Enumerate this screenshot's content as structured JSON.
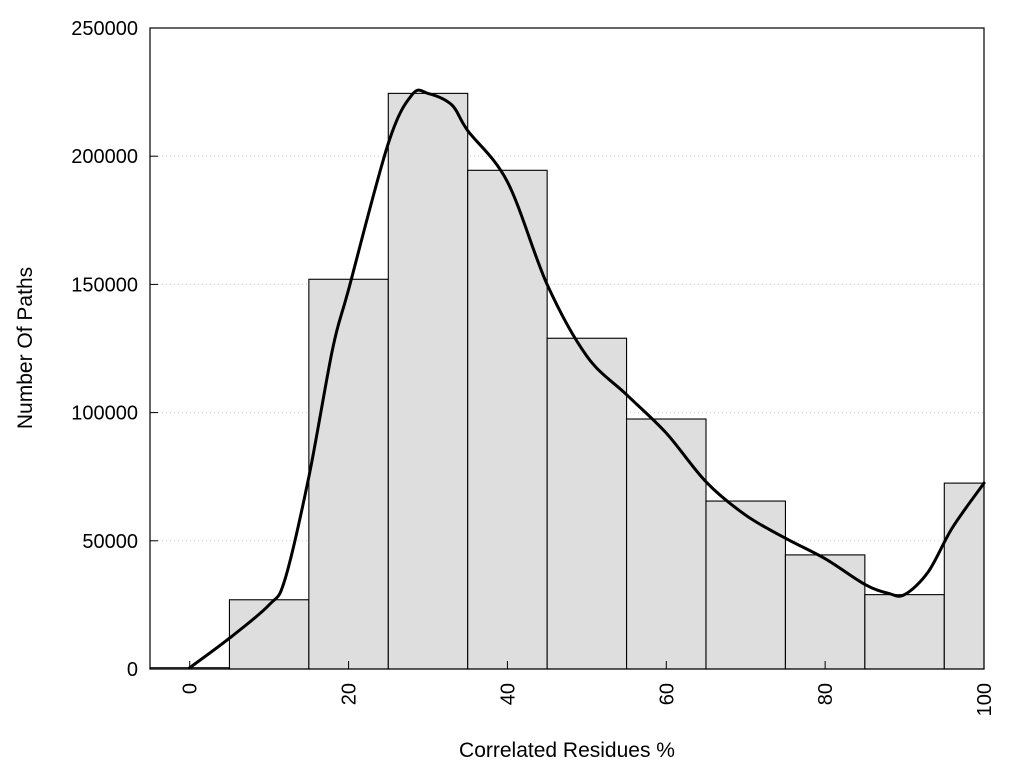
{
  "chart_data": {
    "type": "bar",
    "title": "",
    "xlabel": "Correlated Residues %",
    "ylabel": "Number Of Paths",
    "xlim": [
      -5,
      100
    ],
    "ylim": [
      0,
      250000
    ],
    "x_ticks": [
      "0",
      "20",
      "40",
      "60",
      "80",
      "100"
    ],
    "y_ticks": [
      "0",
      "50000",
      "100000",
      "150000",
      "200000",
      "250000"
    ],
    "bin_width": 10,
    "bins": [
      {
        "center": 0,
        "value": 500
      },
      {
        "center": 10,
        "value": 27000
      },
      {
        "center": 20,
        "value": 152000
      },
      {
        "center": 30,
        "value": 224500
      },
      {
        "center": 40,
        "value": 194500
      },
      {
        "center": 50,
        "value": 129000
      },
      {
        "center": 60,
        "value": 97500
      },
      {
        "center": 70,
        "value": 65500
      },
      {
        "center": 80,
        "value": 44500
      },
      {
        "center": 90,
        "value": 29000
      },
      {
        "center": 100,
        "value": 72500
      }
    ],
    "curve": {
      "x": [
        0,
        5,
        10,
        12,
        15,
        18,
        20,
        25,
        28,
        30,
        33,
        35,
        40,
        45,
        50,
        55,
        60,
        65,
        70,
        75,
        80,
        85,
        88,
        90,
        93,
        96,
        100
      ],
      "y": [
        500,
        12000,
        25000,
        35000,
        75000,
        125000,
        148000,
        205000,
        224000,
        224500,
        220000,
        210000,
        190000,
        150000,
        122000,
        107000,
        92000,
        73000,
        60000,
        51000,
        43000,
        33000,
        29500,
        29000,
        38000,
        55000,
        72500
      ]
    },
    "bar_fill": "#dedede",
    "bar_stroke": "#000000",
    "line_color": "#000000",
    "grid": "horizontal dotted",
    "legend": "none"
  }
}
